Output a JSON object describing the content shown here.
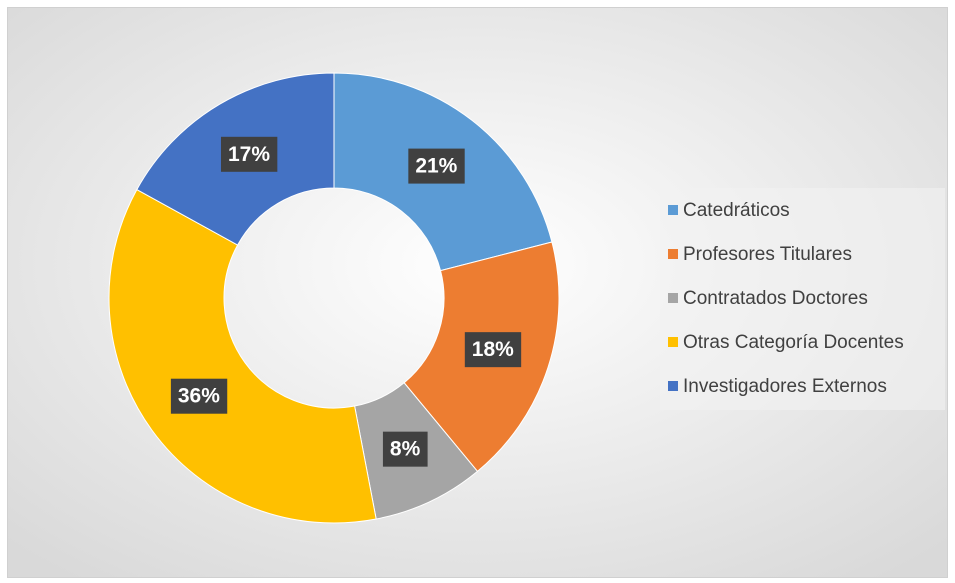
{
  "chart_data": {
    "type": "pie",
    "categories": [
      "Catedráticos",
      "Profesores Titulares",
      "Contratados Doctores",
      "Otras Categoría Docentes",
      "Investigadores Externos"
    ],
    "values": [
      21,
      18,
      8,
      36,
      17
    ],
    "value_labels": [
      "21%",
      "18%",
      "8%",
      "36%",
      "17%"
    ],
    "colors": [
      "#5b9bd5",
      "#ed7d31",
      "#a5a5a5",
      "#ffc000",
      "#4472c4"
    ],
    "legend": "right"
  }
}
